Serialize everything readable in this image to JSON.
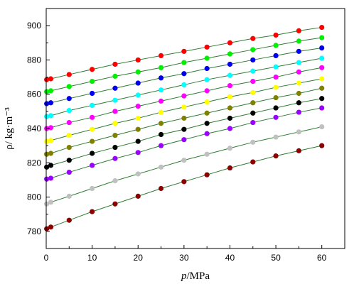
{
  "chart_data": {
    "type": "scatter",
    "xlabel": "p/MPa",
    "ylabel": "ρ/ kg·m⁻³",
    "xlim": [
      0,
      65
    ],
    "ylim": [
      770,
      910
    ],
    "x_ticks": [
      0,
      10,
      20,
      30,
      40,
      50,
      60
    ],
    "y_ticks": [
      780,
      800,
      820,
      840,
      860,
      880,
      900
    ],
    "grid": false,
    "fit_lines": true,
    "fit_line_color": "#2e7d32",
    "x": [
      0.1,
      1,
      5,
      10,
      15,
      20,
      25,
      30,
      35,
      40,
      45,
      50,
      55,
      60
    ],
    "series": [
      {
        "color": "#ff0000",
        "values": [
          868.5,
          869.0,
          871.5,
          874.5,
          877.5,
          880.0,
          882.5,
          885.0,
          887.5,
          890.0,
          892.5,
          894.5,
          897.0,
          899.0
        ]
      },
      {
        "color": "#00ee00",
        "values": [
          861.5,
          862.0,
          864.5,
          867.5,
          870.5,
          873.0,
          875.5,
          878.5,
          881.0,
          883.5,
          886.0,
          888.5,
          891.0,
          893.0
        ]
      },
      {
        "color": "#0000ee",
        "values": [
          854.5,
          855.0,
          857.5,
          860.5,
          863.5,
          866.5,
          869.5,
          872.0,
          875.0,
          877.5,
          880.0,
          882.5,
          885.0,
          887.0
        ]
      },
      {
        "color": "#00ffff",
        "values": [
          847.0,
          847.5,
          850.5,
          853.5,
          856.5,
          859.5,
          862.5,
          865.5,
          868.5,
          871.0,
          873.5,
          876.0,
          878.5,
          881.0
        ]
      },
      {
        "color": "#ff00ff",
        "values": [
          840.0,
          840.5,
          843.5,
          846.5,
          850.0,
          853.0,
          856.0,
          859.0,
          862.0,
          865.0,
          867.5,
          870.0,
          873.0,
          875.5
        ]
      },
      {
        "color": "#ffff00",
        "values": [
          832.5,
          833.0,
          836.0,
          839.5,
          843.0,
          846.0,
          849.5,
          852.5,
          855.5,
          858.5,
          861.0,
          864.0,
          866.5,
          869.0
        ]
      },
      {
        "color": "#808000",
        "values": [
          825.0,
          825.5,
          829.0,
          832.5,
          836.0,
          839.5,
          843.0,
          846.0,
          849.0,
          852.0,
          855.0,
          858.0,
          860.5,
          863.5
        ]
      },
      {
        "color": "#000000",
        "values": [
          817.5,
          818.5,
          821.5,
          825.5,
          829.0,
          832.5,
          836.5,
          839.5,
          843.0,
          846.0,
          849.0,
          852.0,
          855.0,
          857.5
        ]
      },
      {
        "color": "#9900ff",
        "values": [
          810.5,
          811.0,
          814.5,
          818.5,
          822.5,
          826.0,
          830.0,
          833.5,
          837.0,
          840.0,
          843.5,
          846.5,
          849.5,
          852.0
        ]
      },
      {
        "color": "#c0c0c0",
        "values": [
          796.0,
          797.0,
          800.5,
          805.0,
          809.5,
          813.5,
          817.5,
          821.5,
          825.0,
          828.5,
          832.0,
          835.0,
          838.0,
          841.0
        ]
      },
      {
        "color": "#8b0000",
        "values": [
          781.5,
          782.5,
          786.5,
          791.5,
          796.0,
          800.5,
          805.0,
          809.0,
          813.0,
          817.0,
          820.5,
          824.0,
          827.0,
          830.0
        ]
      }
    ]
  }
}
